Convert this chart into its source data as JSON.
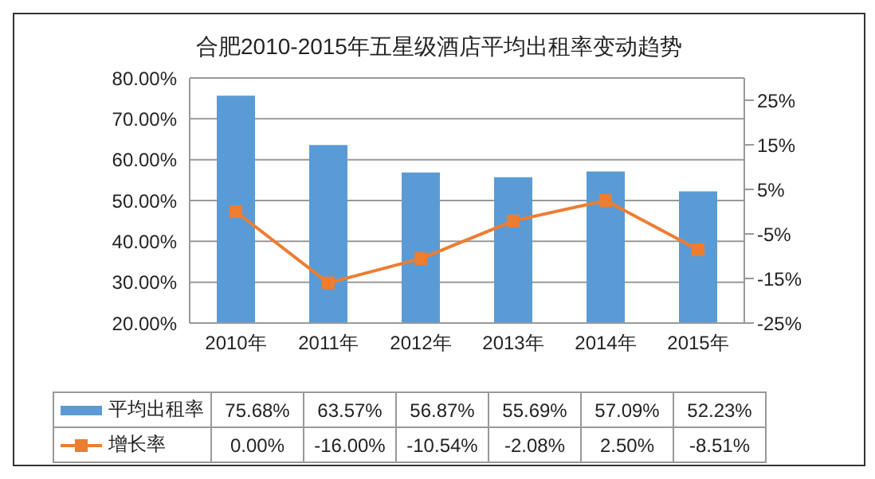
{
  "chart_data": {
    "type": "bar",
    "title": "合肥2010-2015年五星级酒店平均出租率变动趋势",
    "categories": [
      "2010年",
      "2011年",
      "2012年",
      "2013年",
      "2014年",
      "2015年"
    ],
    "series": [
      {
        "name": "平均出租率",
        "color": "#5b9bd5",
        "values": [
          75.68,
          63.57,
          56.87,
          55.69,
          57.09,
          52.23
        ],
        "value_labels": [
          "75.68%",
          "63.57%",
          "56.87%",
          "55.69%",
          "57.09%",
          "52.23%"
        ]
      },
      {
        "name": "增长率",
        "type": "line",
        "axis": "y2",
        "color": "#ed7d31",
        "marker": "square",
        "values": [
          0,
          -16,
          -10.54,
          -2.08,
          2.5,
          -8.51
        ],
        "value_labels": [
          "0.00%",
          "-16.00%",
          "-10.54%",
          "-2.08%",
          "2.50%",
          "-8.51%"
        ]
      }
    ],
    "ylim": [
      20,
      80
    ],
    "yticks": [
      {
        "value": 20,
        "label": "20.00%"
      },
      {
        "value": 30,
        "label": "30.00%"
      },
      {
        "value": 40,
        "label": "40.00%"
      },
      {
        "value": 50,
        "label": "50.00%"
      },
      {
        "value": 60,
        "label": "60.00%"
      },
      {
        "value": 70,
        "label": "70.00%"
      },
      {
        "value": 80,
        "label": "80.00%"
      }
    ],
    "y2lim": [
      -25,
      30
    ],
    "y2ticks": [
      {
        "value": -25,
        "label": "-25%"
      },
      {
        "value": -15,
        "label": "-15%"
      },
      {
        "value": -5,
        "label": "-5%"
      },
      {
        "value": 5,
        "label": "5%"
      },
      {
        "value": 15,
        "label": "15%"
      },
      {
        "value": 25,
        "label": "25%"
      }
    ],
    "grid": "y",
    "legend": "bottom"
  }
}
